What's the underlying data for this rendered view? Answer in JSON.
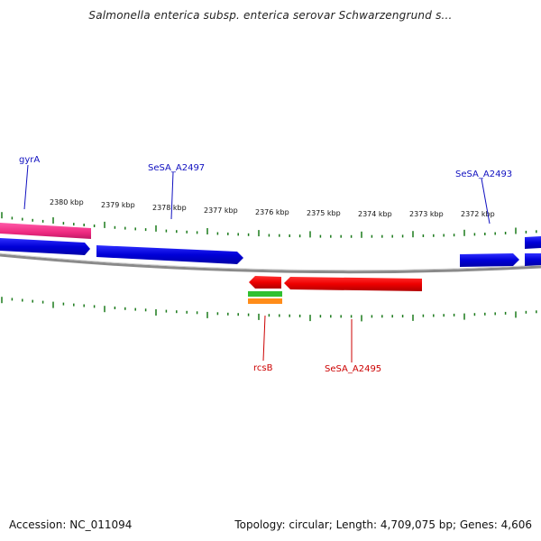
{
  "title": "Salmonella enterica subsp. enterica serovar Schwarzengrund s...",
  "footer": {
    "accession": "Accession: NC_011094",
    "summary": "Topology: circular; Length: 4,709,075 bp; Genes: 4,606"
  },
  "colors": {
    "forward_gene": "#1010e0",
    "reverse_gene": "#ee1010",
    "highlight_gene": "#ee3a8c",
    "green_feature": "#30c030",
    "orange_feature": "#ff8c1a",
    "tick": "#1a7a1a",
    "backbone": "#888888",
    "forward_label": "#1010c0",
    "reverse_label": "#cc0000"
  },
  "kbp_ticks": [
    "2380 kbp",
    "2379 kbp",
    "2378 kbp",
    "2377 kbp",
    "2376 kbp",
    "2375 kbp",
    "2374 kbp",
    "2373 kbp",
    "2372 kbp"
  ],
  "gene_labels": [
    {
      "id": "gyrA",
      "text": "gyrA",
      "strand": "forward"
    },
    {
      "id": "SeSA_A2497",
      "text": "SeSA_A2497",
      "strand": "forward"
    },
    {
      "id": "SeSA_A2493",
      "text": "SeSA_A2493",
      "strand": "forward"
    },
    {
      "id": "rcsB",
      "text": "rcsB",
      "strand": "reverse"
    },
    {
      "id": "SeSA_A2495",
      "text": "SeSA_A2495",
      "strand": "reverse"
    }
  ]
}
